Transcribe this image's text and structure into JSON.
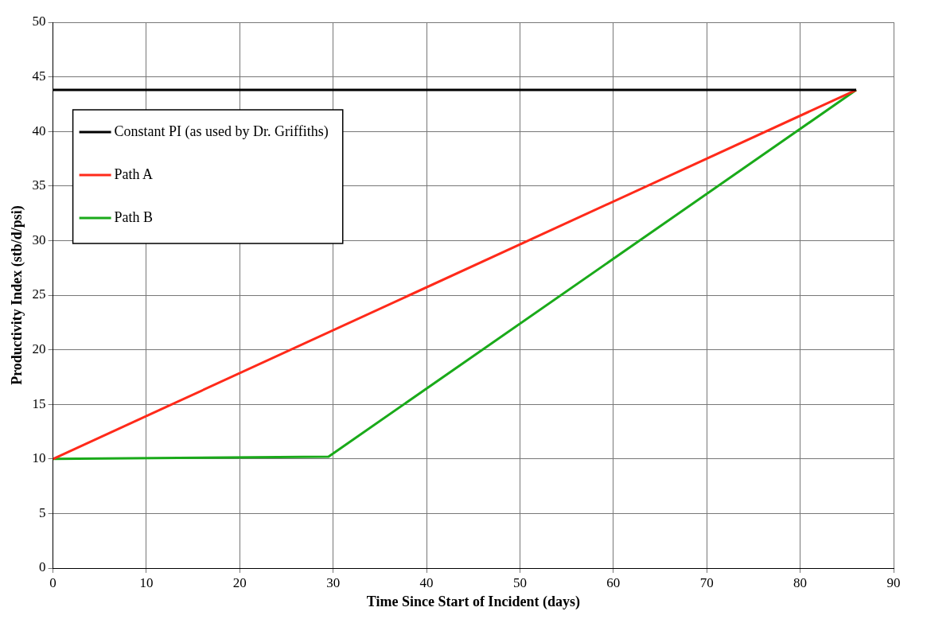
{
  "chart_data": {
    "type": "line",
    "xlabel": "Time Since Start of Incident (days)",
    "ylabel": "Productivity Index (stb/d/psi)",
    "xlim": [
      0,
      90
    ],
    "xticks": [
      0,
      10,
      20,
      30,
      40,
      50,
      60,
      70,
      80,
      90
    ],
    "ylim": [
      0,
      50
    ],
    "yticks": [
      0,
      5,
      10,
      15,
      20,
      25,
      30,
      35,
      40,
      45,
      50
    ],
    "grid": true,
    "legend": "top left",
    "marker": "none",
    "line_style": "solid",
    "series": [
      {
        "name": "Constant PI (as used by Dr. Griffiths)",
        "color": "#000000",
        "x": [
          0,
          86
        ],
        "values": [
          43.8,
          43.8
        ]
      },
      {
        "name": "Path A",
        "color": "#ff2a1a",
        "x": [
          0,
          86
        ],
        "values": [
          10,
          43.8
        ]
      },
      {
        "name": "Path B",
        "color": "#1aaa1a",
        "x": [
          0,
          29.5,
          86
        ],
        "values": [
          10,
          10.2,
          43.8
        ]
      }
    ]
  }
}
